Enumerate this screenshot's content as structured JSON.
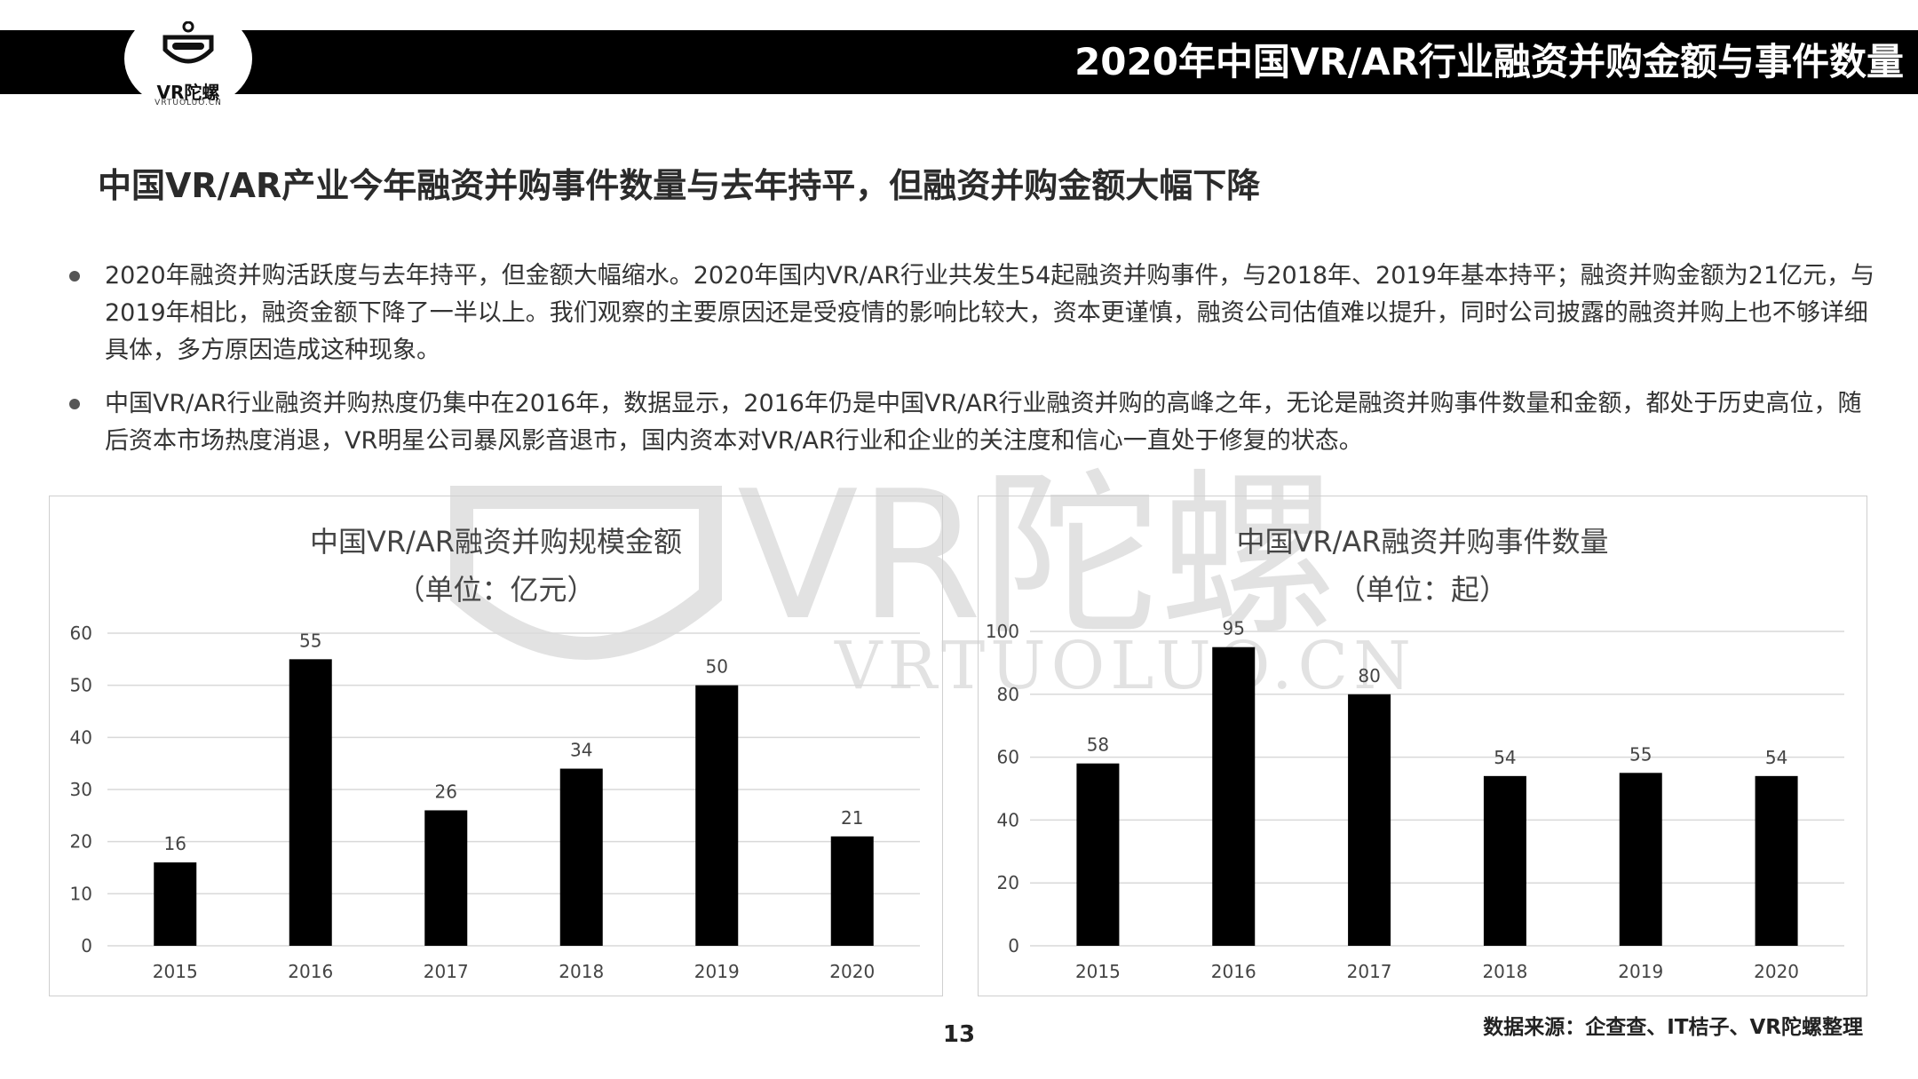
{
  "header": {
    "title": "2020年中国VR/AR行业融资并购金额与事件数量",
    "logo_text": "VR陀螺",
    "logo_sub": "VRTUOLUO.CN"
  },
  "headline": "中国VR/AR产业今年融资并购事件数量与去年持平，但融资并购金额大幅下降",
  "bullets": [
    "2020年融资并购活跃度与去年持平，但金额大幅缩水。2020年国内VR/AR行业共发生54起融资并购事件，与2018年、2019年基本持平；融资并购金额为21亿元，与2019年相比，融资金额下降了一半以上。我们观察的主要原因还是受疫情的影响比较大，资本更谨慎，融资公司估值难以提升，同时公司披露的融资并购上也不够详细具体，多方原因造成这种现象。",
    "中国VR/AR行业融资并购热度仍集中在2016年，数据显示，2016年仍是中国VR/AR行业融资并购的高峰之年，无论是融资并购事件数量和金额，都处于历史高位，随后资本市场热度消退，VR明星公司暴风影音退市，国内资本对VR/AR行业和企业的关注度和信心一直处于修复的状态。"
  ],
  "watermark": {
    "text": "VR陀螺",
    "sub": "VRTUOLUO.CN"
  },
  "chart_data": [
    {
      "type": "bar",
      "title": "中国VR/AR融资并购规模金额",
      "subtitle": "（单位：亿元）",
      "categories": [
        "2015",
        "2016",
        "2017",
        "2018",
        "2019",
        "2020"
      ],
      "values": [
        16,
        55,
        26,
        34,
        50,
        21
      ],
      "ylim": [
        0,
        60
      ],
      "yticks": [
        0,
        10,
        20,
        30,
        40,
        50,
        60
      ],
      "grid": true,
      "bar_color": "#000000"
    },
    {
      "type": "bar",
      "title": "中国VR/AR融资并购事件数量",
      "subtitle": "（单位：起）",
      "categories": [
        "2015",
        "2016",
        "2017",
        "2018",
        "2019",
        "2020"
      ],
      "values": [
        58,
        95,
        80,
        54,
        55,
        54
      ],
      "ylim": [
        0,
        100
      ],
      "yticks": [
        0,
        20,
        40,
        60,
        80,
        100
      ],
      "grid": true,
      "bar_color": "#000000"
    }
  ],
  "footer": {
    "page_number": "13",
    "source": "数据来源：企查查、IT桔子、VR陀螺整理"
  }
}
